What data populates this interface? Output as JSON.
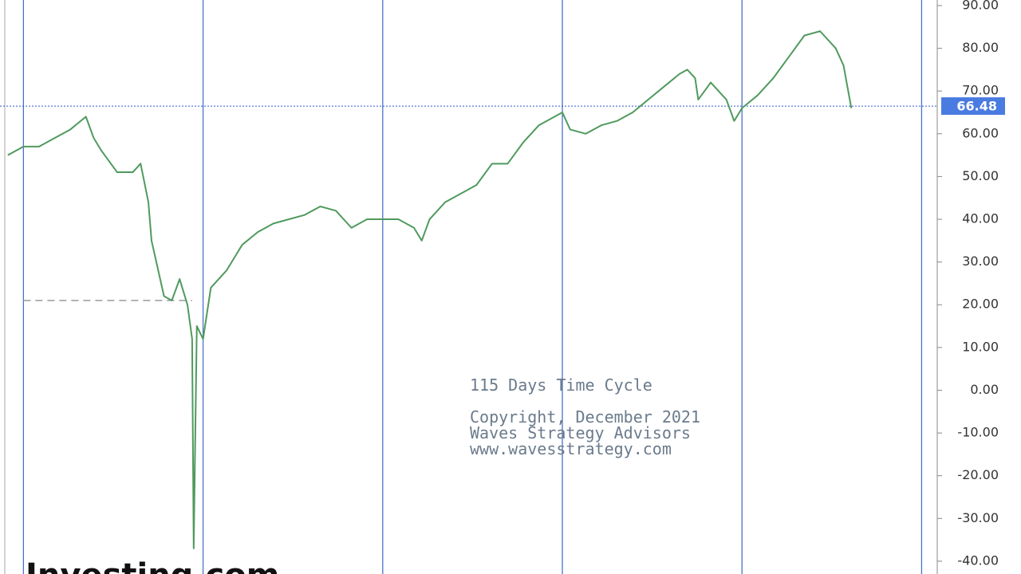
{
  "chart_data": {
    "type": "line",
    "color": "#4f9a5e",
    "x": [
      -10,
      0,
      10,
      20,
      30,
      40,
      45,
      50,
      60,
      70,
      75,
      80,
      82,
      90,
      95,
      100,
      105,
      108,
      109,
      111,
      115,
      120,
      130,
      140,
      150,
      160,
      170,
      180,
      190,
      200,
      210,
      220,
      230,
      240,
      250,
      255,
      260,
      270,
      280,
      290,
      300,
      310,
      320,
      330,
      340,
      345,
      350,
      360,
      370,
      380,
      390,
      400,
      410,
      420,
      425,
      430,
      432,
      440,
      450,
      455,
      460,
      470,
      480,
      490,
      500,
      510,
      520,
      525,
      530
    ],
    "values": [
      55,
      57,
      57,
      59,
      61,
      64,
      59,
      56,
      51,
      51,
      53,
      44,
      35,
      22,
      21,
      26,
      20,
      12,
      -37,
      15,
      12,
      24,
      28,
      34,
      37,
      39,
      40,
      41,
      43,
      42,
      38,
      40,
      40,
      40,
      38,
      35,
      40,
      44,
      46,
      48,
      53,
      53,
      58,
      62,
      64,
      65,
      61,
      60,
      62,
      63,
      65,
      68,
      71,
      74,
      75,
      73,
      68,
      72,
      68,
      63,
      66,
      69,
      73,
      78,
      83,
      84,
      80,
      76,
      66
    ],
    "xlim": [
      -15,
      585
    ],
    "ylim": [
      -43,
      91.3
    ],
    "yticks": [
      {
        "value": 90,
        "label": "90.00"
      },
      {
        "value": 80,
        "label": "80.00"
      },
      {
        "value": 70,
        "label": "70.00"
      },
      {
        "value": 60,
        "label": "60.00"
      },
      {
        "value": 50,
        "label": "50.00"
      },
      {
        "value": 40,
        "label": "40.00"
      },
      {
        "value": 30,
        "label": "30.00"
      },
      {
        "value": 20,
        "label": "20.00"
      },
      {
        "value": 10,
        "label": "10.00"
      },
      {
        "value": 0,
        "label": "0.00"
      },
      {
        "value": -10,
        "label": "-10.00"
      },
      {
        "value": -20,
        "label": "-20.00"
      },
      {
        "value": -30,
        "label": "-30.00"
      },
      {
        "value": -40,
        "label": "-40.00"
      }
    ],
    "last_value": 66.48,
    "cycle_lines": [
      0,
      115,
      230,
      345,
      460,
      575
    ],
    "reference_level": 21,
    "annotations": [
      "115 Days Time Cycle",
      "Copyright, December 2021",
      "Waves Strategy Advisors",
      "www.wavesstrategy.com"
    ],
    "logo": "Investing.com"
  }
}
